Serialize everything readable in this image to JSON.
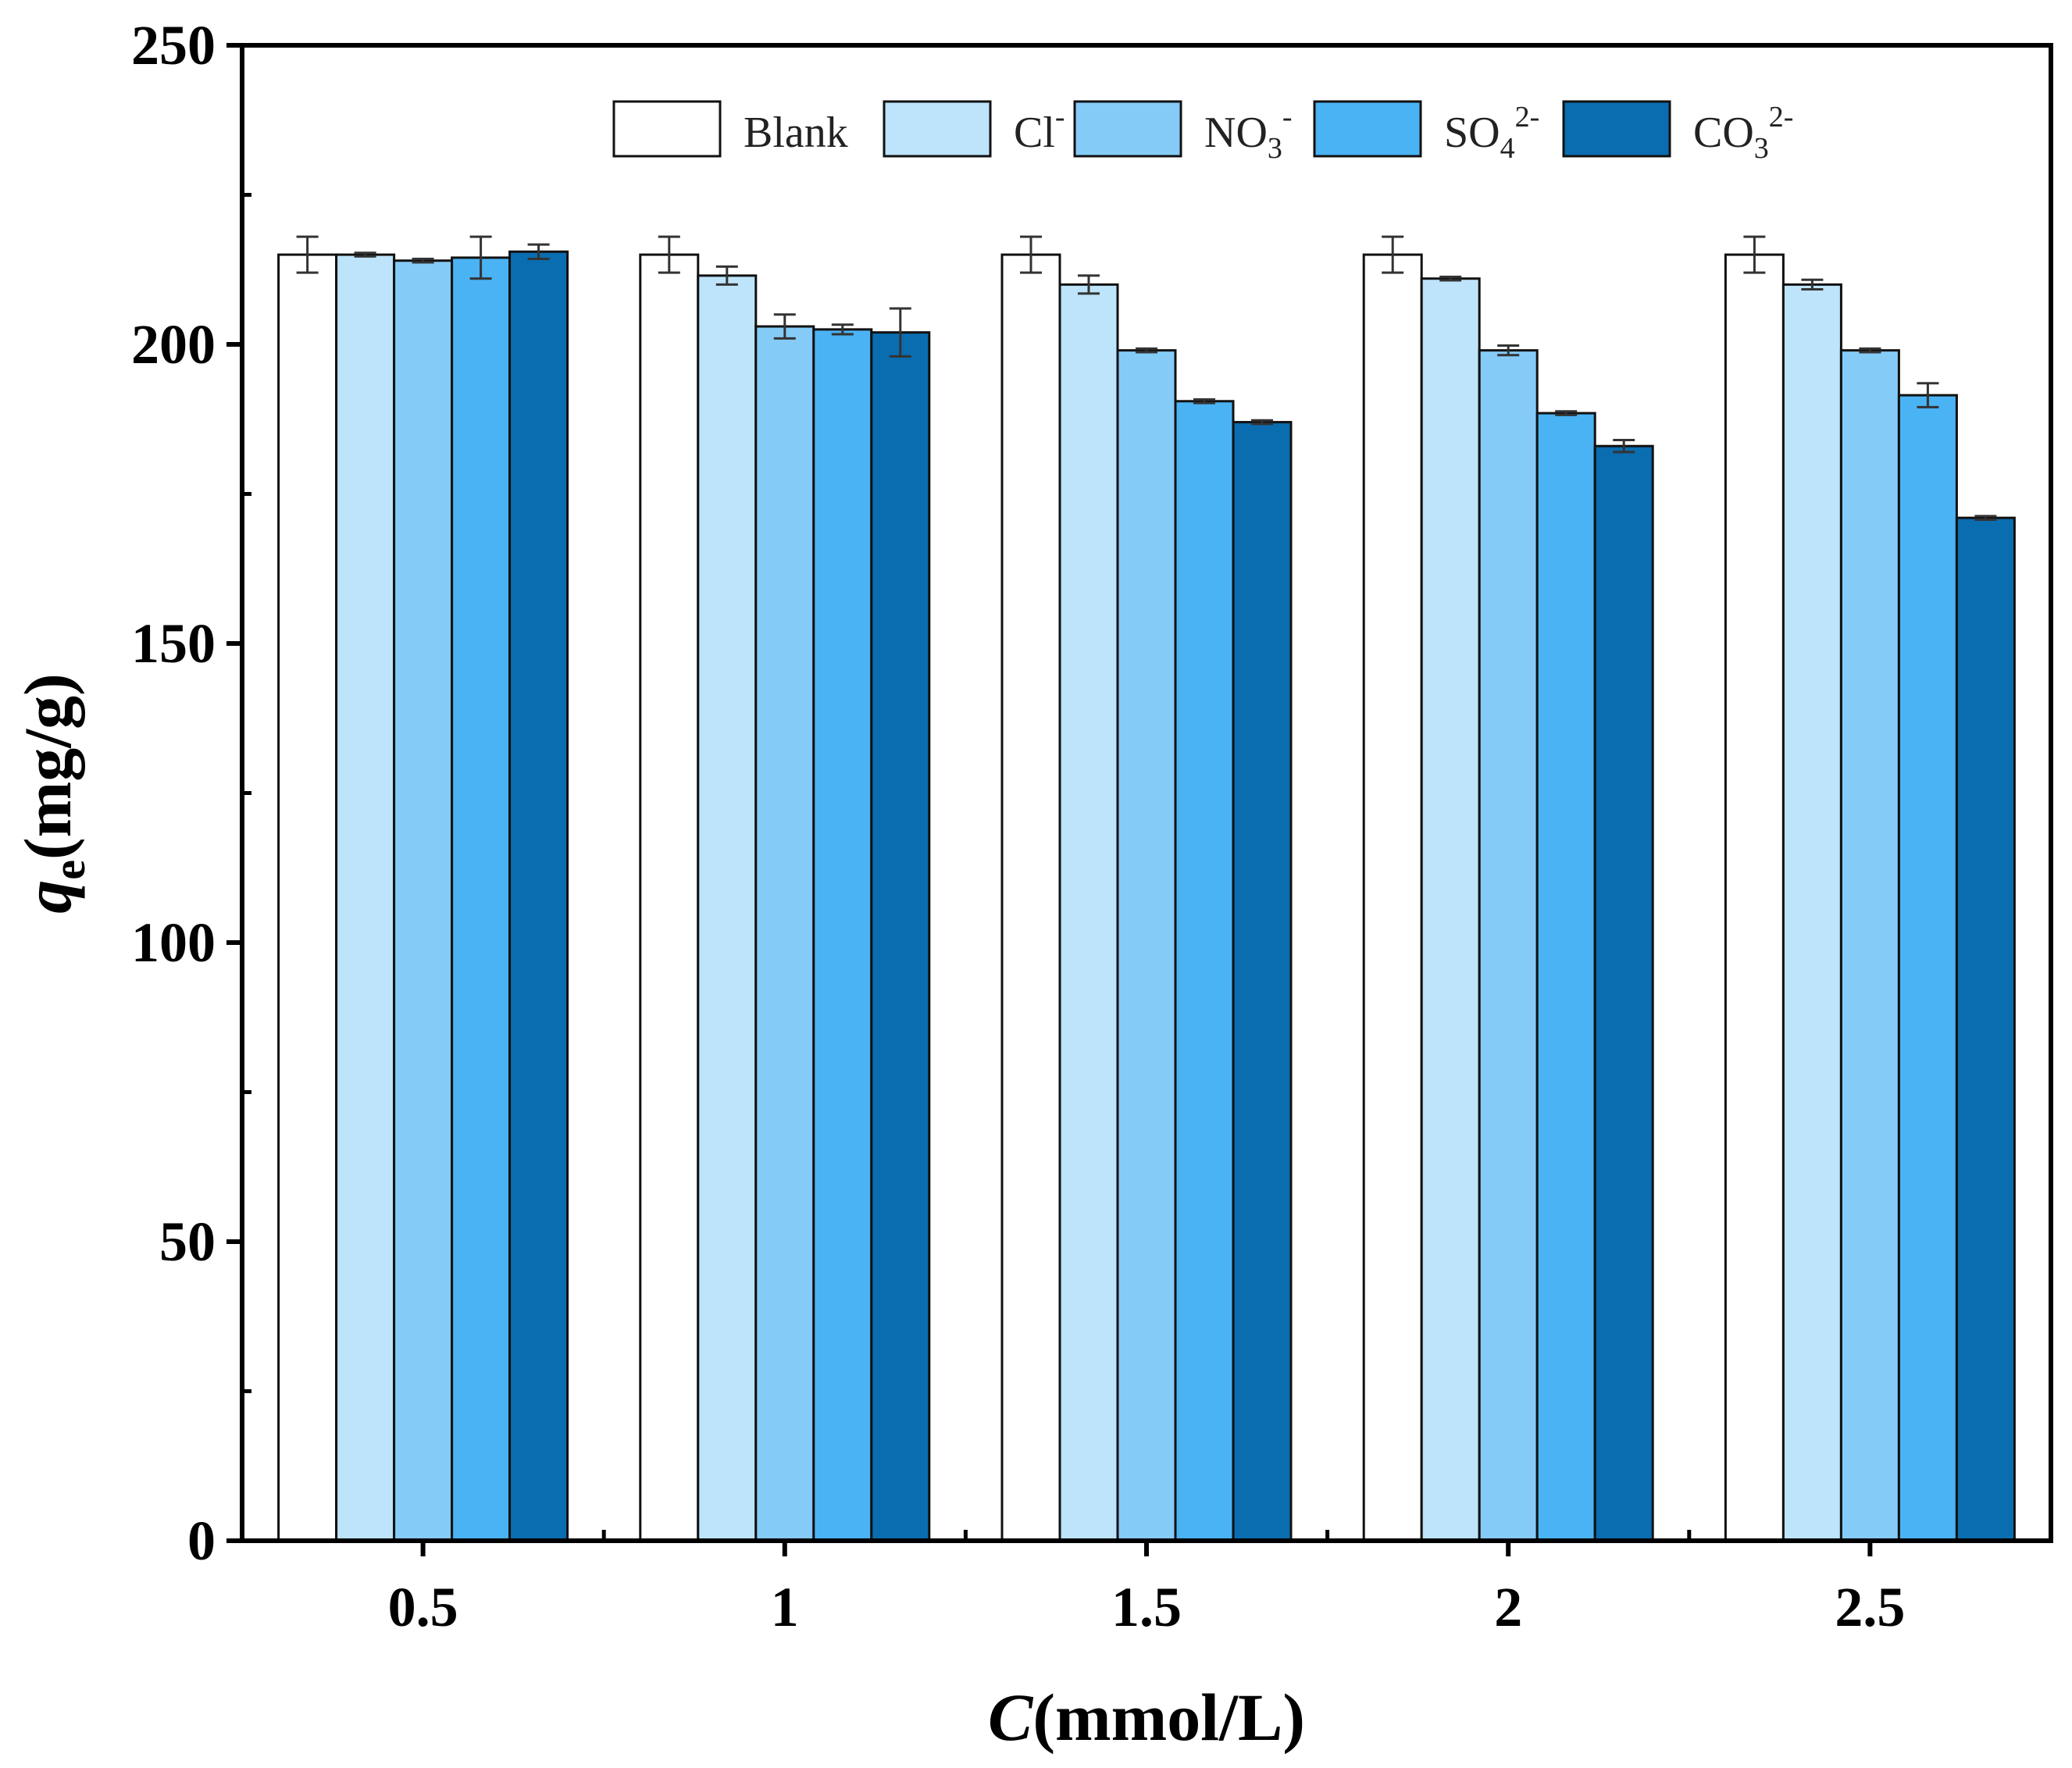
{
  "chart_data": {
    "type": "bar",
    "title": "",
    "xlabel_italic": "C",
    "xlabel_rest": "(mmol/L)",
    "ylabel_italic": "q",
    "ylabel_sub": "e",
    "ylabel_rest": "(mg/g)",
    "categories": [
      "0.5",
      "1",
      "1.5",
      "2",
      "2.5"
    ],
    "ylim": [
      0,
      250
    ],
    "yticks": [
      "0",
      "50",
      "100",
      "150",
      "200",
      "250"
    ],
    "legend_position": "top",
    "series": [
      {
        "name": "Blank",
        "base": "Blank",
        "sub": "",
        "sup": "",
        "color": "#ffffff",
        "values": [
          215,
          215,
          215,
          215,
          215
        ],
        "errors": [
          3,
          3,
          3,
          3,
          3
        ]
      },
      {
        "name": "Cl-",
        "base": "Cl",
        "sub": "",
        "sup": "-",
        "color": "#bde4fb",
        "values": [
          215,
          211.5,
          210,
          211,
          210
        ],
        "errors": [
          0.3,
          1.5,
          1.5,
          0.3,
          0.8
        ]
      },
      {
        "name": "NO3-",
        "base": "NO",
        "sub": "3",
        "sup": "-",
        "color": "#85cbf7",
        "values": [
          214,
          203,
          199,
          199,
          199
        ],
        "errors": [
          0.3,
          2,
          0.3,
          0.8,
          0.3
        ]
      },
      {
        "name": "SO42-",
        "base": "SO",
        "sub": "4",
        "sup": "2-",
        "color": "#4ab3f4",
        "values": [
          214.5,
          202.5,
          190.5,
          188.5,
          191.5
        ],
        "errors": [
          3.5,
          0.8,
          0.3,
          0.3,
          2
        ]
      },
      {
        "name": "CO32-",
        "base": "CO",
        "sub": "3",
        "sup": "2-",
        "color": "#0a6db0",
        "values": [
          215.5,
          202,
          187,
          183,
          171
        ],
        "errors": [
          1.2,
          4,
          0.3,
          1,
          0.3
        ]
      }
    ]
  }
}
